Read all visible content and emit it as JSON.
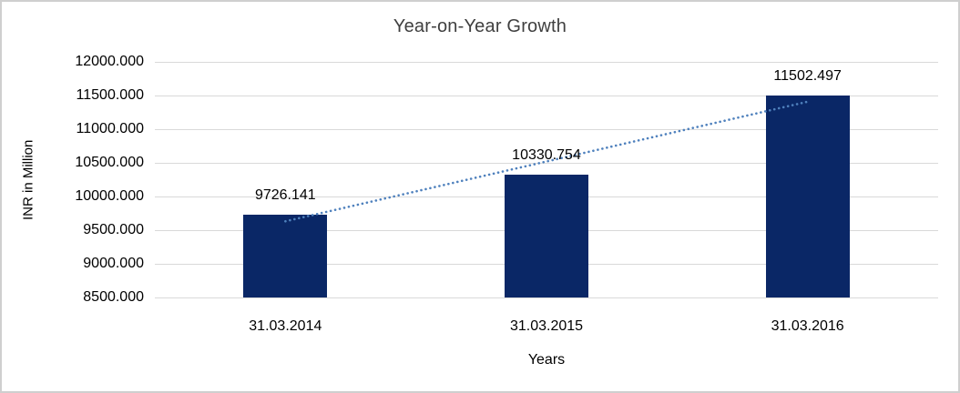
{
  "chart_data": {
    "type": "bar",
    "title": "Year-on-Year Growth",
    "xlabel": "Years",
    "ylabel": "INR in Million",
    "categories": [
      "31.03.2014",
      "31.03.2015",
      "31.03.2016"
    ],
    "values": [
      9726.141,
      10330.754,
      11502.497
    ],
    "data_labels": [
      "9726.141",
      "10330.754",
      "11502.497"
    ],
    "ylim": [
      8500,
      12000
    ],
    "ytick_step": 500,
    "ytick_labels": [
      "12000.000",
      "11500.000",
      "11000.000",
      "10500.000",
      "10000.000",
      "9500.000",
      "9000.000",
      "8500.000"
    ],
    "grid": true,
    "legend": "none",
    "trendline": {
      "type": "linear",
      "style": "dotted"
    },
    "colors": {
      "bar": "#0a2766",
      "trendline": "#4f81bd",
      "gridline": "#d9d9d9",
      "text": "#000000",
      "title_text": "#3f3f3f",
      "border": "#cfcfcf",
      "background": "#ffffff"
    }
  }
}
